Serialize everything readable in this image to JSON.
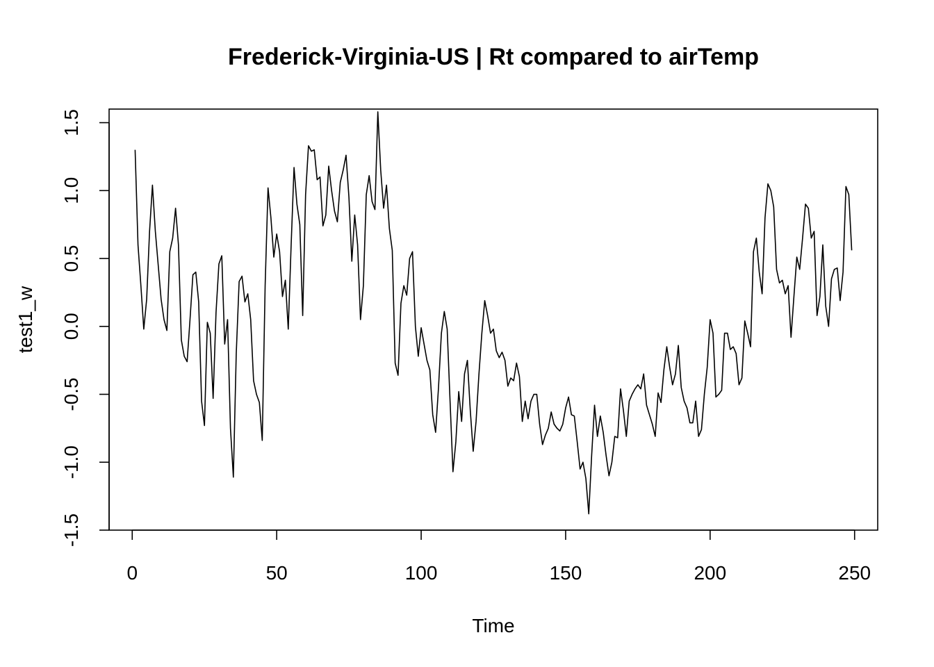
{
  "chart_data": {
    "type": "line",
    "title": "Frederick-Virginia-US | Rt compared to airTemp",
    "xlabel": "Time",
    "ylabel": "test1_w",
    "xlim": [
      -8,
      258
    ],
    "ylim": [
      -1.5,
      1.6
    ],
    "x_ticks": [
      0,
      50,
      100,
      150,
      200,
      250
    ],
    "x_tick_labels": [
      "0",
      "50",
      "100",
      "150",
      "200",
      "250"
    ],
    "y_ticks": [
      -1.5,
      -1.0,
      -0.5,
      0.0,
      0.5,
      1.0,
      1.5
    ],
    "y_tick_labels": [
      "-1.5",
      "-1.0",
      "-0.5",
      "0.0",
      "0.5",
      "1.0",
      "1.5"
    ],
    "grid": false,
    "legend": "none",
    "line_color": "#000000",
    "x_start": 1,
    "values": [
      1.3,
      0.6,
      0.3,
      -0.02,
      0.2,
      0.7,
      1.04,
      0.7,
      0.45,
      0.2,
      0.05,
      -0.03,
      0.55,
      0.65,
      0.87,
      0.6,
      -0.1,
      -0.22,
      -0.26,
      0.05,
      0.38,
      0.4,
      0.18,
      -0.55,
      -0.73,
      0.03,
      -0.05,
      -0.53,
      0.1,
      0.46,
      0.52,
      -0.13,
      0.05,
      -0.75,
      -1.11,
      -0.2,
      0.33,
      0.37,
      0.18,
      0.24,
      0.05,
      -0.4,
      -0.5,
      -0.56,
      -0.84,
      0.3,
      1.02,
      0.8,
      0.51,
      0.68,
      0.55,
      0.22,
      0.34,
      -0.02,
      0.6,
      1.17,
      0.9,
      0.75,
      0.08,
      0.97,
      1.33,
      1.29,
      1.3,
      1.08,
      1.1,
      0.74,
      0.82,
      1.18,
      1.0,
      0.85,
      0.77,
      1.06,
      1.15,
      1.26,
      0.95,
      0.48,
      0.82,
      0.6,
      0.05,
      0.3,
      0.97,
      1.11,
      0.92,
      0.86,
      1.58,
      1.15,
      0.87,
      1.04,
      0.72,
      0.56,
      -0.27,
      -0.36,
      0.17,
      0.3,
      0.23,
      0.5,
      0.55,
      0.0,
      -0.22,
      -0.01,
      -0.13,
      -0.25,
      -0.32,
      -0.65,
      -0.78,
      -0.45,
      -0.05,
      0.11,
      -0.02,
      -0.55,
      -1.07,
      -0.85,
      -0.48,
      -0.7,
      -0.35,
      -0.25,
      -0.62,
      -0.92,
      -0.7,
      -0.35,
      -0.05,
      0.19,
      0.08,
      -0.05,
      -0.02,
      -0.18,
      -0.23,
      -0.19,
      -0.25,
      -0.44,
      -0.38,
      -0.4,
      -0.27,
      -0.37,
      -0.7,
      -0.55,
      -0.68,
      -0.55,
      -0.5,
      -0.5,
      -0.72,
      -0.87,
      -0.8,
      -0.75,
      -0.63,
      -0.72,
      -0.75,
      -0.77,
      -0.72,
      -0.6,
      -0.52,
      -0.65,
      -0.66,
      -0.85,
      -1.05,
      -1.0,
      -1.12,
      -1.38,
      -0.95,
      -0.58,
      -0.81,
      -0.66,
      -0.78,
      -0.95,
      -1.1,
      -1.0,
      -0.81,
      -0.82,
      -0.46,
      -0.62,
      -0.81,
      -0.55,
      -0.5,
      -0.46,
      -0.43,
      -0.46,
      -0.35,
      -0.58,
      -0.65,
      -0.72,
      -0.81,
      -0.49,
      -0.56,
      -0.32,
      -0.15,
      -0.3,
      -0.43,
      -0.35,
      -0.14,
      -0.45,
      -0.55,
      -0.6,
      -0.71,
      -0.71,
      -0.55,
      -0.81,
      -0.76,
      -0.5,
      -0.3,
      0.05,
      -0.05,
      -0.52,
      -0.5,
      -0.47,
      -0.05,
      -0.05,
      -0.17,
      -0.15,
      -0.2,
      -0.43,
      -0.38,
      0.04,
      -0.05,
      -0.15,
      0.55,
      0.65,
      0.4,
      0.24,
      0.8,
      1.05,
      1.0,
      0.88,
      0.42,
      0.32,
      0.34,
      0.24,
      0.3,
      -0.08,
      0.22,
      0.51,
      0.42,
      0.65,
      0.9,
      0.87,
      0.65,
      0.7,
      0.08,
      0.22,
      0.6,
      0.15,
      0.0,
      0.35,
      0.42,
      0.43,
      0.19,
      0.4,
      1.03,
      0.97,
      0.56
    ]
  }
}
